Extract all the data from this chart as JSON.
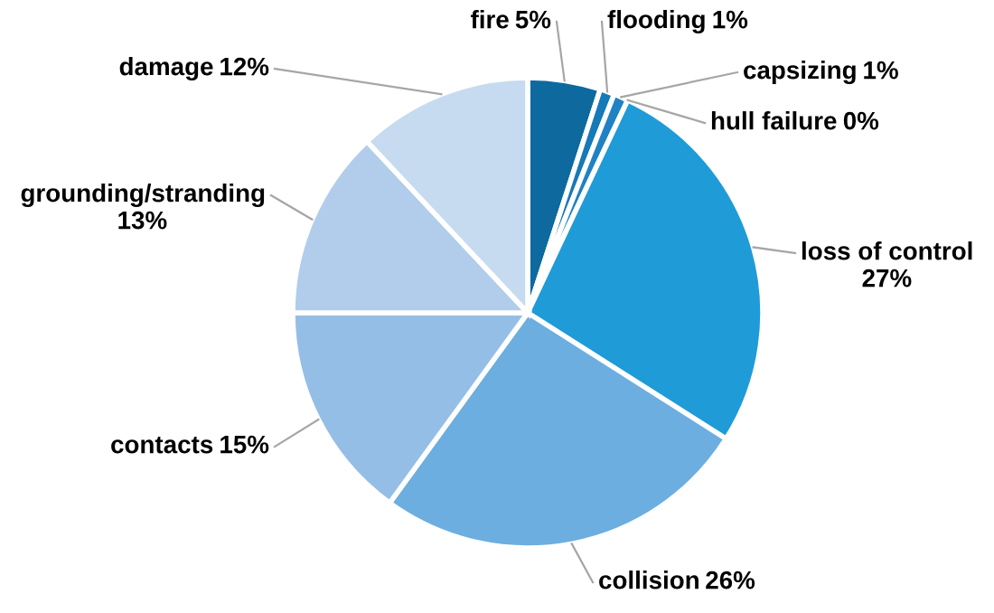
{
  "chart_data": {
    "type": "pie",
    "categories": [
      "fire",
      "flooding",
      "capsizing",
      "hull failure",
      "loss of control",
      "collision",
      "contacts",
      "grounding/stranding",
      "damage"
    ],
    "values": [
      5,
      1,
      1,
      0,
      27,
      26,
      15,
      13,
      12
    ],
    "colors": [
      "#0e6a9e",
      "#1679b8",
      "#1f82c4",
      "#2a8ccd",
      "#1f9bd8",
      "#6caee0",
      "#95bee6",
      "#b2cdeb",
      "#c6dbf0"
    ],
    "value_labels": [
      "5%",
      "1%",
      "1%",
      "0%",
      "27%",
      "26%",
      "15%",
      "13%",
      "12%"
    ]
  }
}
